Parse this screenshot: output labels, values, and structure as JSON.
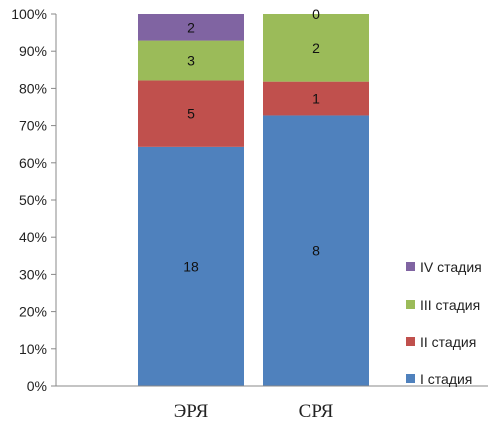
{
  "chart_data": {
    "type": "bar",
    "stacked": true,
    "normalized": true,
    "categories": [
      "ЭРЯ",
      "СРЯ"
    ],
    "series": [
      {
        "name": "I стадия",
        "values": [
          18,
          8
        ],
        "color": "#4F81BD"
      },
      {
        "name": "II стадия",
        "values": [
          5,
          1
        ],
        "color": "#C0504D"
      },
      {
        "name": "III стадия",
        "values": [
          3,
          2
        ],
        "color": "#9BBB59"
      },
      {
        "name": "IV стадия",
        "values": [
          2,
          0
        ],
        "color": "#8064A2"
      }
    ],
    "y_ticks": [
      "0%",
      "10%",
      "20%",
      "30%",
      "40%",
      "50%",
      "60%",
      "70%",
      "80%",
      "90%",
      "100%"
    ],
    "ylim": [
      0,
      100
    ],
    "legend_position": "right",
    "grid": false
  }
}
